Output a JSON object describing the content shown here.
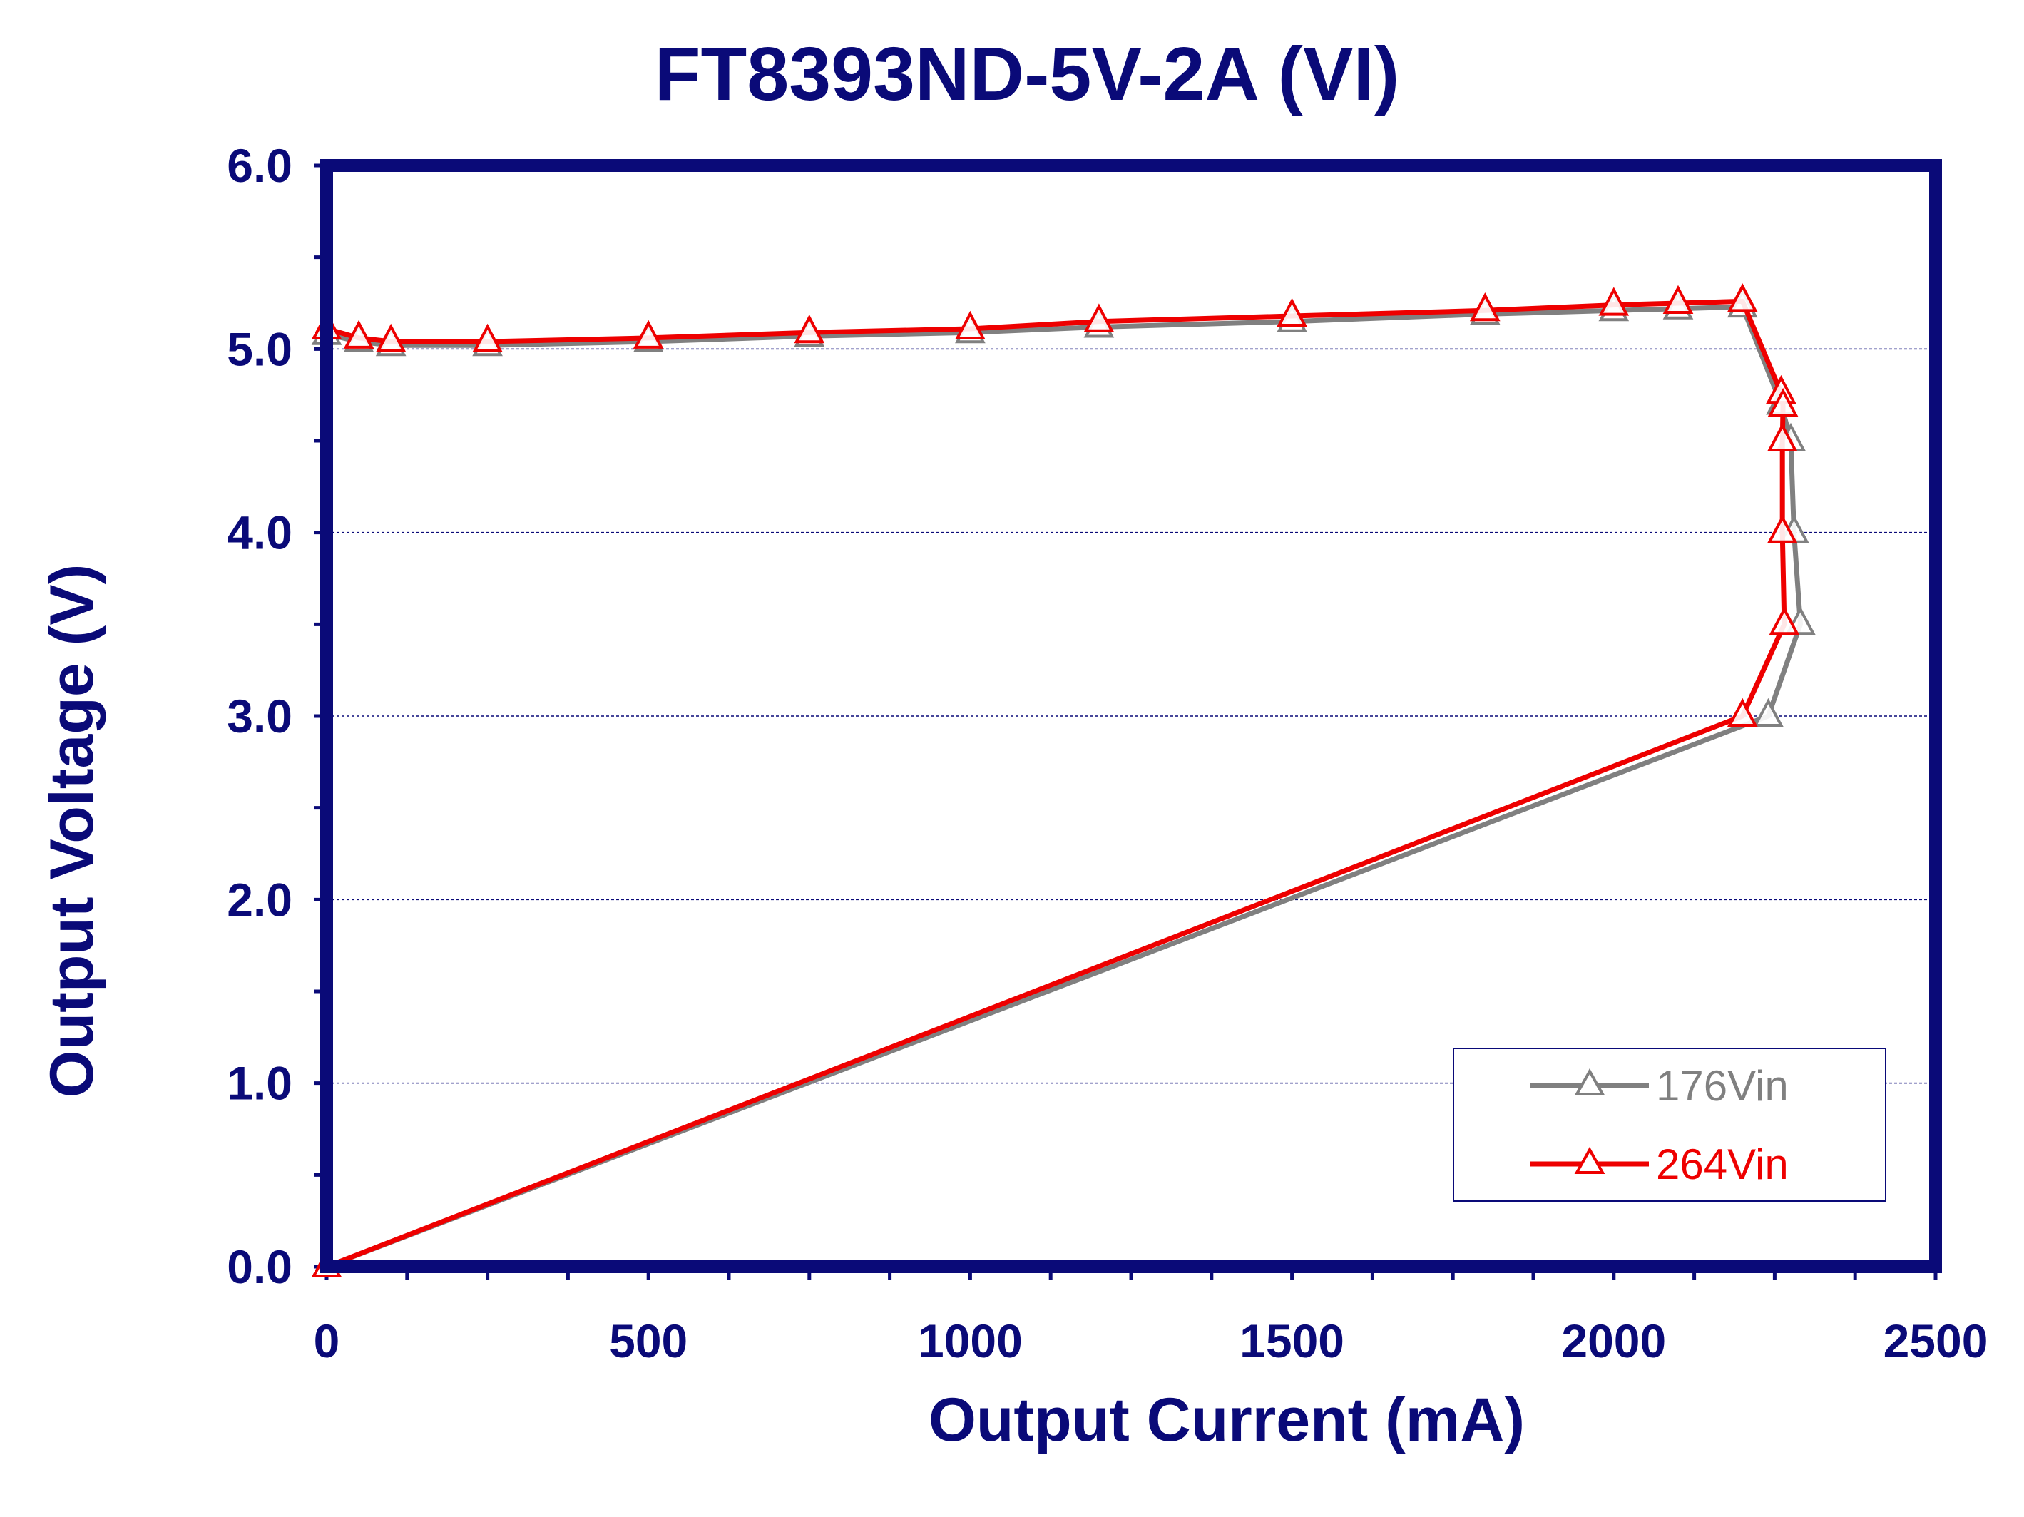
{
  "chart_data": {
    "type": "line",
    "title": "FT8393ND-5V-2A  (VI)",
    "xlabel": "Output Current (mA)",
    "ylabel": "Output Voltage (V)",
    "xlim": [
      0,
      2500
    ],
    "ylim": [
      0,
      6
    ],
    "x_ticks": [
      "0",
      "500",
      "1000",
      "1500",
      "2000",
      "2500"
    ],
    "y_ticks": [
      "0.0",
      "1.0",
      "2.0",
      "3.0",
      "4.0",
      "5.0",
      "6.0"
    ],
    "grid": "horizontal dashed",
    "legend_position": "bottom-right",
    "marker": "triangle",
    "series": [
      {
        "name": "176Vin",
        "color": "#808080",
        "points": [
          [
            0,
            5.08
          ],
          [
            50,
            5.04
          ],
          [
            100,
            5.02
          ],
          [
            250,
            5.02
          ],
          [
            500,
            5.04
          ],
          [
            750,
            5.07
          ],
          [
            1000,
            5.09
          ],
          [
            1200,
            5.12
          ],
          [
            1500,
            5.15
          ],
          [
            1800,
            5.19
          ],
          [
            2000,
            5.21
          ],
          [
            2100,
            5.22
          ],
          [
            2200,
            5.23
          ],
          [
            2260,
            4.7
          ],
          [
            2275,
            4.5
          ],
          [
            2280,
            4.0
          ],
          [
            2290,
            3.5
          ],
          [
            2240,
            3.0
          ],
          [
            0,
            0.0
          ]
        ]
      },
      {
        "name": "264Vin",
        "color": "#ee0000",
        "points": [
          [
            0,
            5.11
          ],
          [
            50,
            5.06
          ],
          [
            100,
            5.04
          ],
          [
            250,
            5.04
          ],
          [
            500,
            5.06
          ],
          [
            750,
            5.09
          ],
          [
            1000,
            5.11
          ],
          [
            1200,
            5.15
          ],
          [
            1500,
            5.18
          ],
          [
            1800,
            5.21
          ],
          [
            2000,
            5.24
          ],
          [
            2100,
            5.25
          ],
          [
            2200,
            5.26
          ],
          [
            2260,
            4.76
          ],
          [
            2263,
            4.69
          ],
          [
            2262,
            4.5
          ],
          [
            2262,
            4.0
          ],
          [
            2265,
            3.5
          ],
          [
            2200,
            3.0
          ],
          [
            0,
            0.0
          ]
        ]
      }
    ]
  },
  "colors": {
    "frame": "#0a0a78",
    "text": "#0a0a78"
  }
}
